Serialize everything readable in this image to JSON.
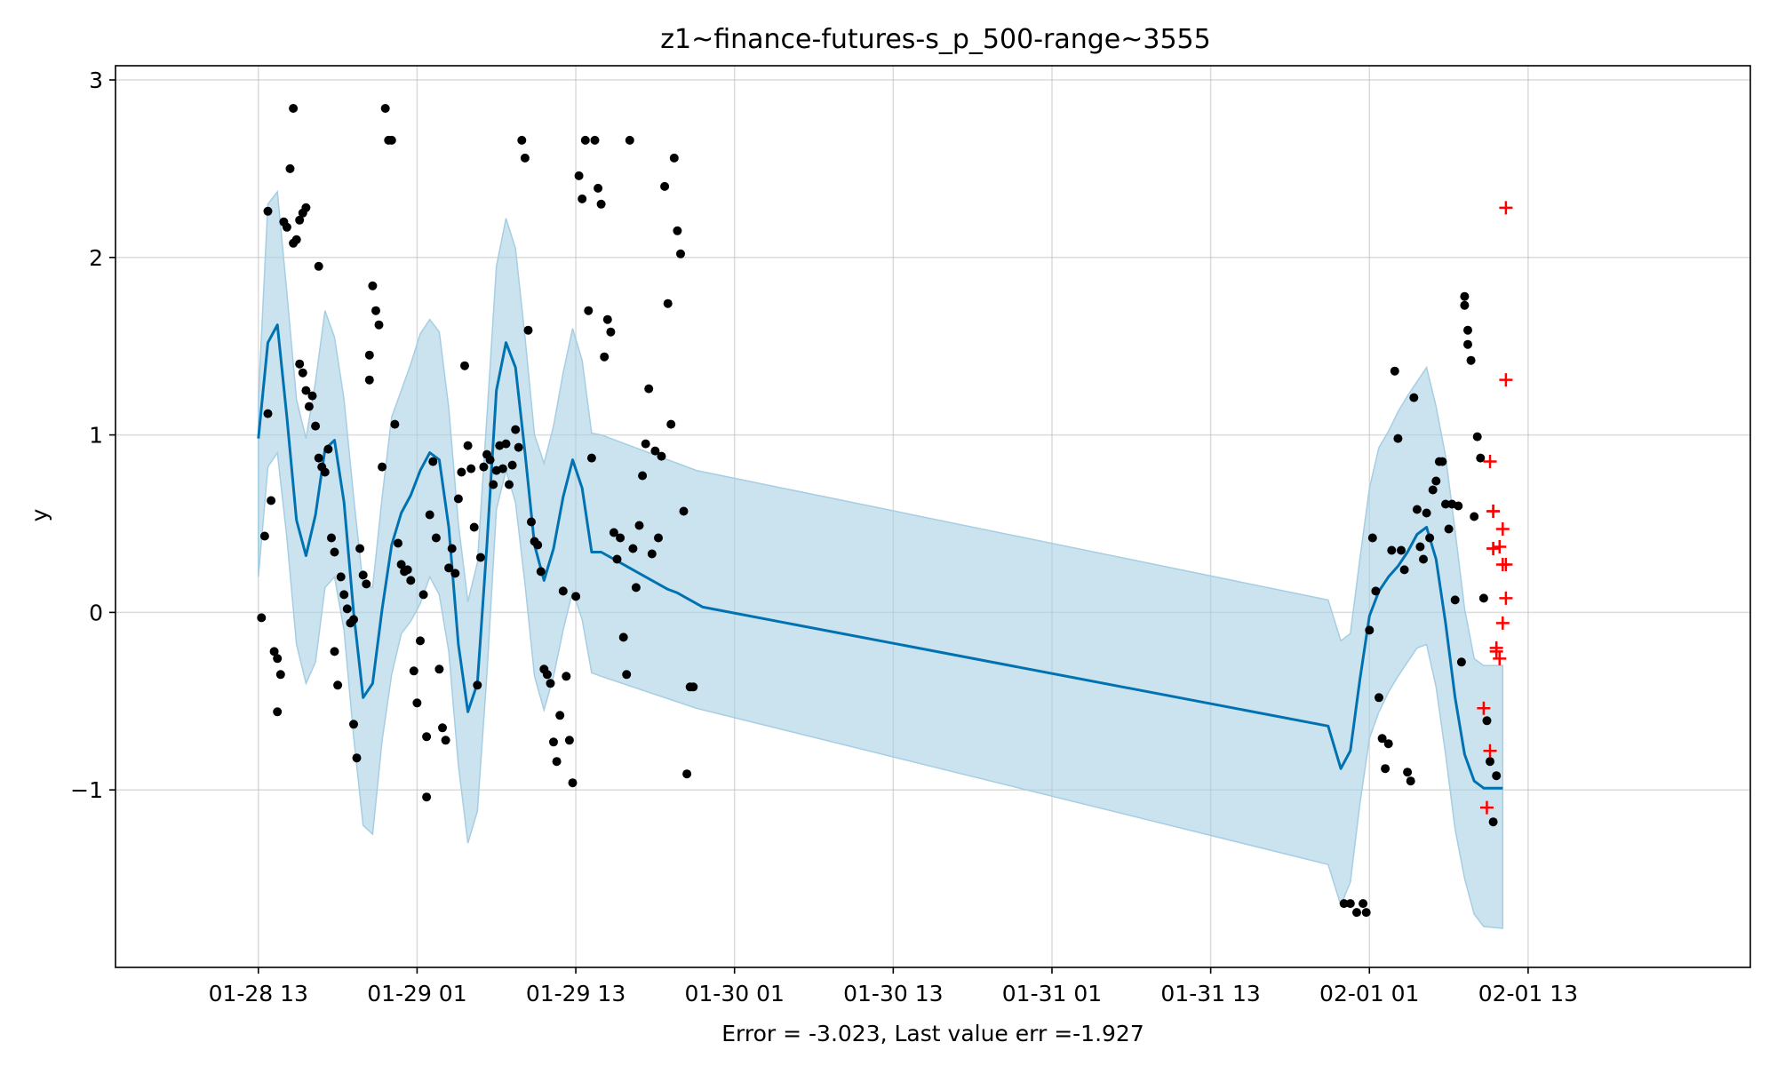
{
  "chart_data": {
    "type": "line",
    "title": "z1~finance-futures-s_p_500-range~3555",
    "xlabel": "Error = -3.023, Last value err =-1.927",
    "ylabel": "y",
    "xlim": [
      -0.45,
      4.7
    ],
    "ylim": [
      -2.0,
      3.08
    ],
    "x_ticks": [
      {
        "value": 0.0,
        "label": "01-28 13"
      },
      {
        "value": 0.5,
        "label": "01-29 01"
      },
      {
        "value": 1.0,
        "label": "01-29 13"
      },
      {
        "value": 1.5,
        "label": "01-30 01"
      },
      {
        "value": 2.0,
        "label": "01-30 13"
      },
      {
        "value": 2.5,
        "label": "01-31 01"
      },
      {
        "value": 3.0,
        "label": "01-31 13"
      },
      {
        "value": 3.5,
        "label": "02-01 01"
      },
      {
        "value": 4.0,
        "label": "02-01 13"
      }
    ],
    "y_ticks": [
      {
        "value": -1,
        "label": "−1"
      },
      {
        "value": 0,
        "label": "0"
      },
      {
        "value": 1,
        "label": "1"
      },
      {
        "value": 2,
        "label": "2"
      },
      {
        "value": 3,
        "label": "3"
      }
    ],
    "grid": true,
    "colors": {
      "forecast": "#0072b2",
      "band": "#a6cee3",
      "observed": "#000000",
      "future": "#ff0000"
    },
    "series": [
      {
        "kind": "forecast-line",
        "x": [
          0.0,
          0.03,
          0.06,
          0.09,
          0.12,
          0.15,
          0.18,
          0.21,
          0.24,
          0.27,
          0.3,
          0.33,
          0.36,
          0.39,
          0.42,
          0.45,
          0.48,
          0.51,
          0.54,
          0.57,
          0.6,
          0.63,
          0.66,
          0.69,
          0.72,
          0.75,
          0.78,
          0.81,
          0.84,
          0.87,
          0.9,
          0.93,
          0.96,
          0.99,
          1.02,
          1.05,
          1.08,
          1.11,
          1.14,
          1.17,
          1.2,
          1.23,
          1.26,
          1.29,
          1.32,
          1.34,
          1.37,
          1.4,
          3.37,
          3.41,
          3.44,
          3.47,
          3.5,
          3.53,
          3.56,
          3.59,
          3.62,
          3.65,
          3.68,
          3.71,
          3.74,
          3.77,
          3.8,
          3.83,
          3.86,
          3.89,
          3.92
        ],
        "y": [
          0.98,
          1.52,
          1.62,
          1.1,
          0.52,
          0.32,
          0.55,
          0.92,
          0.97,
          0.62,
          0.0,
          -0.48,
          -0.4,
          0.02,
          0.38,
          0.56,
          0.66,
          0.8,
          0.9,
          0.86,
          0.48,
          -0.18,
          -0.56,
          -0.4,
          0.38,
          1.25,
          1.52,
          1.38,
          0.9,
          0.38,
          0.18,
          0.36,
          0.65,
          0.86,
          0.7,
          0.34,
          0.34,
          0.31,
          0.28,
          0.25,
          0.22,
          0.19,
          0.16,
          0.13,
          0.11,
          0.09,
          0.06,
          0.03,
          -0.64,
          -0.88,
          -0.78,
          -0.38,
          -0.02,
          0.12,
          0.2,
          0.26,
          0.34,
          0.44,
          0.48,
          0.3,
          -0.06,
          -0.48,
          -0.8,
          -0.95,
          -0.99,
          -0.99,
          -0.99
        ]
      },
      {
        "kind": "uncertainty-band",
        "x": [
          0.0,
          0.03,
          0.06,
          0.09,
          0.12,
          0.15,
          0.18,
          0.21,
          0.24,
          0.27,
          0.3,
          0.33,
          0.36,
          0.39,
          0.42,
          0.45,
          0.48,
          0.51,
          0.54,
          0.57,
          0.6,
          0.63,
          0.66,
          0.69,
          0.72,
          0.75,
          0.78,
          0.81,
          0.84,
          0.87,
          0.9,
          0.93,
          0.96,
          0.99,
          1.02,
          1.05,
          1.08,
          1.38,
          3.37,
          3.41,
          3.44,
          3.47,
          3.5,
          3.53,
          3.56,
          3.59,
          3.62,
          3.65,
          3.68,
          3.71,
          3.74,
          3.77,
          3.8,
          3.83,
          3.86,
          3.92
        ],
        "upper": [
          1.2,
          2.3,
          2.37,
          1.8,
          1.2,
          0.98,
          1.3,
          1.7,
          1.55,
          1.2,
          0.65,
          0.15,
          0.14,
          0.65,
          1.1,
          1.25,
          1.4,
          1.57,
          1.65,
          1.58,
          1.15,
          0.5,
          0.06,
          0.28,
          1.1,
          1.95,
          2.22,
          2.05,
          1.55,
          1.0,
          0.84,
          1.05,
          1.35,
          1.6,
          1.42,
          1.01,
          1.0,
          0.8,
          0.07,
          -0.16,
          -0.12,
          0.3,
          0.7,
          0.93,
          1.02,
          1.13,
          1.22,
          1.3,
          1.38,
          1.16,
          0.88,
          0.46,
          0.02,
          -0.26,
          -0.3,
          -0.3
        ],
        "lower": [
          0.2,
          0.82,
          0.9,
          0.42,
          -0.18,
          -0.4,
          -0.28,
          0.14,
          0.2,
          -0.1,
          -0.7,
          -1.2,
          -1.25,
          -0.72,
          -0.35,
          -0.12,
          -0.05,
          0.05,
          0.2,
          0.1,
          -0.22,
          -0.86,
          -1.3,
          -1.12,
          -0.35,
          0.58,
          0.8,
          0.62,
          0.16,
          -0.36,
          -0.55,
          -0.36,
          -0.1,
          0.12,
          -0.04,
          -0.34,
          -0.36,
          -0.54,
          -1.42,
          -1.65,
          -1.52,
          -1.08,
          -0.71,
          -0.56,
          -0.45,
          -0.36,
          -0.28,
          -0.2,
          -0.18,
          -0.42,
          -0.8,
          -1.22,
          -1.5,
          -1.7,
          -1.77,
          -1.78
        ]
      },
      {
        "kind": "observed",
        "points": [
          [
            0.01,
            -0.03
          ],
          [
            0.02,
            0.43
          ],
          [
            0.03,
            1.12
          ],
          [
            0.03,
            2.26
          ],
          [
            0.04,
            0.63
          ],
          [
            0.05,
            -0.22
          ],
          [
            0.06,
            -0.26
          ],
          [
            0.07,
            -0.35
          ],
          [
            0.06,
            -0.56
          ],
          [
            0.08,
            2.2
          ],
          [
            0.09,
            2.17
          ],
          [
            0.1,
            2.5
          ],
          [
            0.11,
            2.84
          ],
          [
            0.11,
            2.08
          ],
          [
            0.12,
            2.1
          ],
          [
            0.13,
            2.21
          ],
          [
            0.14,
            2.25
          ],
          [
            0.15,
            2.28
          ],
          [
            0.13,
            1.4
          ],
          [
            0.14,
            1.35
          ],
          [
            0.15,
            1.25
          ],
          [
            0.16,
            1.16
          ],
          [
            0.17,
            1.22
          ],
          [
            0.18,
            1.05
          ],
          [
            0.19,
            1.95
          ],
          [
            0.19,
            0.87
          ],
          [
            0.2,
            0.82
          ],
          [
            0.21,
            0.79
          ],
          [
            0.22,
            0.92
          ],
          [
            0.23,
            0.42
          ],
          [
            0.24,
            0.34
          ],
          [
            0.24,
            -0.22
          ],
          [
            0.25,
            -0.41
          ],
          [
            0.26,
            0.2
          ],
          [
            0.27,
            0.1
          ],
          [
            0.28,
            0.02
          ],
          [
            0.29,
            -0.06
          ],
          [
            0.3,
            -0.04
          ],
          [
            0.3,
            -0.63
          ],
          [
            0.31,
            -0.82
          ],
          [
            0.32,
            0.36
          ],
          [
            0.33,
            0.21
          ],
          [
            0.34,
            0.16
          ],
          [
            0.35,
            1.45
          ],
          [
            0.35,
            1.31
          ],
          [
            0.36,
            1.84
          ],
          [
            0.37,
            1.7
          ],
          [
            0.38,
            1.62
          ],
          [
            0.39,
            0.82
          ],
          [
            0.4,
            2.84
          ],
          [
            0.41,
            2.66
          ],
          [
            0.42,
            2.66
          ],
          [
            0.43,
            1.06
          ],
          [
            0.44,
            0.39
          ],
          [
            0.45,
            0.27
          ],
          [
            0.46,
            0.23
          ],
          [
            0.47,
            0.24
          ],
          [
            0.48,
            0.18
          ],
          [
            0.49,
            -0.33
          ],
          [
            0.5,
            -0.51
          ],
          [
            0.51,
            -0.16
          ],
          [
            0.52,
            0.1
          ],
          [
            0.53,
            -0.7
          ],
          [
            0.53,
            -1.04
          ],
          [
            0.54,
            0.55
          ],
          [
            0.55,
            0.85
          ],
          [
            0.56,
            0.42
          ],
          [
            0.57,
            -0.32
          ],
          [
            0.58,
            -0.65
          ],
          [
            0.59,
            -0.72
          ],
          [
            0.6,
            0.25
          ],
          [
            0.61,
            0.36
          ],
          [
            0.62,
            0.22
          ],
          [
            0.63,
            0.64
          ],
          [
            0.64,
            0.79
          ],
          [
            0.65,
            1.39
          ],
          [
            0.66,
            0.94
          ],
          [
            0.67,
            0.81
          ],
          [
            0.68,
            0.48
          ],
          [
            0.69,
            -0.41
          ],
          [
            0.7,
            0.31
          ],
          [
            0.71,
            0.82
          ],
          [
            0.72,
            0.89
          ],
          [
            0.73,
            0.86
          ],
          [
            0.74,
            0.72
          ],
          [
            0.75,
            0.8
          ],
          [
            0.76,
            0.94
          ],
          [
            0.77,
            0.81
          ],
          [
            0.78,
            0.95
          ],
          [
            0.79,
            0.72
          ],
          [
            0.8,
            0.83
          ],
          [
            0.81,
            1.03
          ],
          [
            0.82,
            0.93
          ],
          [
            0.83,
            2.66
          ],
          [
            0.84,
            2.56
          ],
          [
            0.85,
            1.59
          ],
          [
            0.86,
            0.51
          ],
          [
            0.87,
            0.4
          ],
          [
            0.88,
            0.38
          ],
          [
            0.89,
            0.23
          ],
          [
            0.9,
            -0.32
          ],
          [
            0.91,
            -0.35
          ],
          [
            0.92,
            -0.4
          ],
          [
            0.93,
            -0.73
          ],
          [
            0.94,
            -0.84
          ],
          [
            0.95,
            -0.58
          ],
          [
            0.96,
            0.12
          ],
          [
            0.97,
            -0.36
          ],
          [
            0.98,
            -0.72
          ],
          [
            0.99,
            -0.96
          ],
          [
            1.0,
            0.09
          ],
          [
            1.01,
            2.46
          ],
          [
            1.02,
            2.33
          ],
          [
            1.03,
            2.66
          ],
          [
            1.04,
            1.7
          ],
          [
            1.05,
            0.87
          ],
          [
            1.06,
            2.66
          ],
          [
            1.07,
            2.39
          ],
          [
            1.08,
            2.3
          ],
          [
            1.09,
            1.44
          ],
          [
            1.1,
            1.65
          ],
          [
            1.11,
            1.58
          ],
          [
            1.12,
            0.45
          ],
          [
            1.13,
            0.3
          ],
          [
            1.14,
            0.42
          ],
          [
            1.15,
            -0.14
          ],
          [
            1.16,
            -0.35
          ],
          [
            1.17,
            2.66
          ],
          [
            1.18,
            0.36
          ],
          [
            1.19,
            0.14
          ],
          [
            1.2,
            0.49
          ],
          [
            1.21,
            0.77
          ],
          [
            1.22,
            0.95
          ],
          [
            1.23,
            1.26
          ],
          [
            1.24,
            0.33
          ],
          [
            1.25,
            0.91
          ],
          [
            1.26,
            0.42
          ],
          [
            1.27,
            0.88
          ],
          [
            1.28,
            2.4
          ],
          [
            1.29,
            1.74
          ],
          [
            1.3,
            1.06
          ],
          [
            1.31,
            2.56
          ],
          [
            1.32,
            2.15
          ],
          [
            1.33,
            2.02
          ],
          [
            1.34,
            0.57
          ],
          [
            1.35,
            -0.91
          ],
          [
            1.36,
            -0.42
          ],
          [
            1.37,
            -0.42
          ],
          [
            3.42,
            -1.64
          ],
          [
            3.44,
            -1.64
          ],
          [
            3.46,
            -1.69
          ],
          [
            3.48,
            -1.64
          ],
          [
            3.49,
            -1.69
          ],
          [
            3.5,
            -0.1
          ],
          [
            3.51,
            0.42
          ],
          [
            3.52,
            0.12
          ],
          [
            3.53,
            -0.48
          ],
          [
            3.54,
            -0.71
          ],
          [
            3.55,
            -0.88
          ],
          [
            3.56,
            -0.74
          ],
          [
            3.57,
            0.35
          ],
          [
            3.58,
            1.36
          ],
          [
            3.59,
            0.98
          ],
          [
            3.6,
            0.35
          ],
          [
            3.61,
            0.24
          ],
          [
            3.62,
            -0.9
          ],
          [
            3.63,
            -0.95
          ],
          [
            3.64,
            1.21
          ],
          [
            3.65,
            0.58
          ],
          [
            3.66,
            0.37
          ],
          [
            3.67,
            0.3
          ],
          [
            3.68,
            0.56
          ],
          [
            3.69,
            0.42
          ],
          [
            3.7,
            0.69
          ],
          [
            3.71,
            0.74
          ],
          [
            3.72,
            0.85
          ],
          [
            3.73,
            0.85
          ],
          [
            3.74,
            0.61
          ],
          [
            3.75,
            0.47
          ],
          [
            3.76,
            0.61
          ],
          [
            3.77,
            0.07
          ],
          [
            3.78,
            0.6
          ],
          [
            3.79,
            -0.28
          ],
          [
            3.8,
            1.78
          ],
          [
            3.8,
            1.73
          ],
          [
            3.81,
            1.59
          ],
          [
            3.81,
            1.51
          ],
          [
            3.82,
            1.42
          ],
          [
            3.83,
            0.54
          ],
          [
            3.84,
            0.99
          ],
          [
            3.85,
            0.87
          ],
          [
            3.86,
            0.08
          ],
          [
            3.87,
            -0.61
          ],
          [
            3.88,
            -0.84
          ],
          [
            3.89,
            -1.18
          ],
          [
            3.9,
            -0.92
          ]
        ]
      },
      {
        "kind": "future",
        "points": [
          [
            3.87,
            -1.1
          ],
          [
            3.88,
            -0.78
          ],
          [
            3.88,
            0.85
          ],
          [
            3.89,
            0.57
          ],
          [
            3.89,
            0.57
          ],
          [
            3.89,
            0.36
          ],
          [
            3.89,
            0.36
          ],
          [
            3.9,
            -0.2
          ],
          [
            3.9,
            -0.22
          ],
          [
            3.91,
            0.37
          ],
          [
            3.91,
            -0.26
          ],
          [
            3.92,
            0.47
          ],
          [
            3.92,
            0.27
          ],
          [
            3.92,
            -0.06
          ],
          [
            3.93,
            0.27
          ],
          [
            3.93,
            0.08
          ],
          [
            3.93,
            1.31
          ],
          [
            3.93,
            2.28
          ],
          [
            3.86,
            -0.54
          ]
        ]
      }
    ]
  }
}
